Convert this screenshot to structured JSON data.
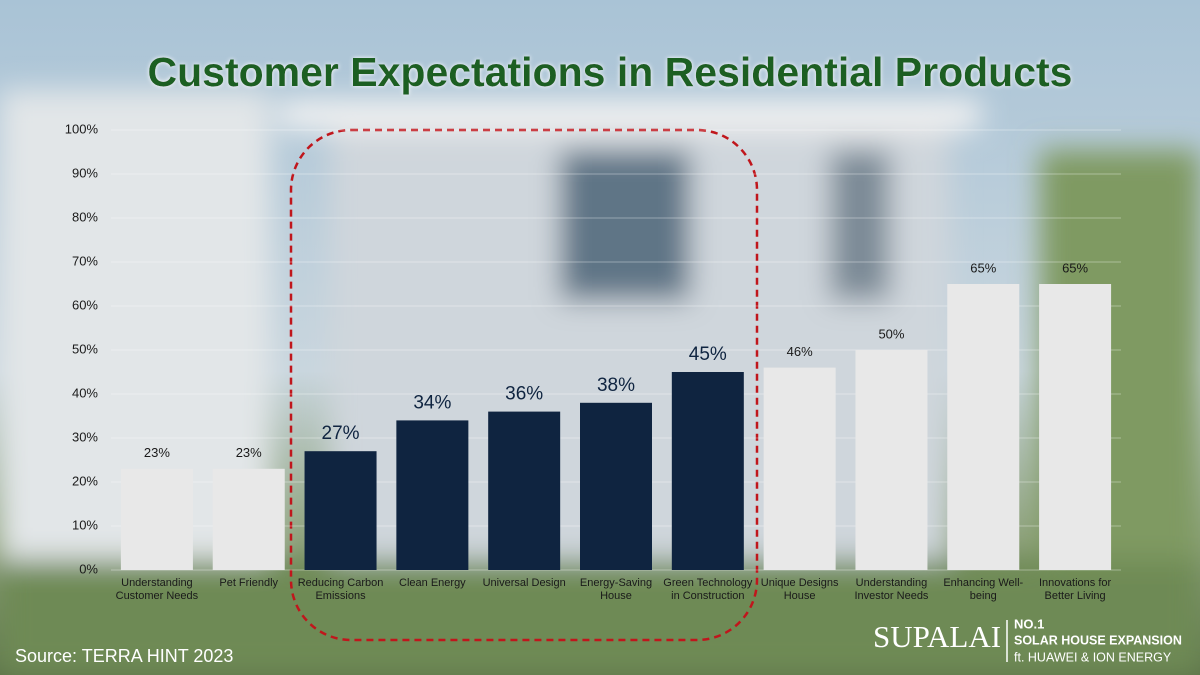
{
  "chart_data": {
    "type": "bar",
    "title": "Customer Expectations in Residential Products",
    "categories": [
      "Understanding Customer Needs",
      "Pet Friendly",
      "Reducing Carbon Emissions",
      "Clean Energy",
      "Universal Design",
      "Energy-Saving House",
      "Green Technology in Construction",
      "Unique Designs House",
      "Understanding Investor Needs",
      "Enhancing Well-being",
      "Innovations for Better Living"
    ],
    "values": [
      23,
      23,
      27,
      34,
      36,
      38,
      45,
      46,
      50,
      65,
      65
    ],
    "value_labels": [
      "23%",
      "23%",
      "27%",
      "34%",
      "36%",
      "38%",
      "45%",
      "46%",
      "50%",
      "65%",
      "65%"
    ],
    "colors": [
      "#e8e8e8",
      "#e8e8e8",
      "#0f2440",
      "#0f2440",
      "#0f2440",
      "#0f2440",
      "#0f2440",
      "#e8e8e8",
      "#e8e8e8",
      "#e8e8e8",
      "#e8e8e8"
    ],
    "ylim": [
      0,
      100
    ],
    "yticks": [
      {
        "value": 0,
        "label": "0%"
      },
      {
        "value": 10,
        "label": "10%"
      },
      {
        "value": 20,
        "label": "20%"
      },
      {
        "value": 30,
        "label": "30%"
      },
      {
        "value": 40,
        "label": "40%"
      },
      {
        "value": 50,
        "label": "50%"
      },
      {
        "value": 60,
        "label": "60%"
      },
      {
        "value": 70,
        "label": "70%"
      },
      {
        "value": 80,
        "label": "80%"
      },
      {
        "value": 90,
        "label": "90%"
      },
      {
        "value": 100,
        "label": "100%"
      }
    ],
    "grid": true,
    "source": "Source: TERRA HINT 2023"
  },
  "logo": {
    "brand": "SUPALAI",
    "rank": "NO.1",
    "line1": "SOLAR HOUSE EXPANSION",
    "line2": "ft. HUAWEI & ION ENERGY"
  }
}
